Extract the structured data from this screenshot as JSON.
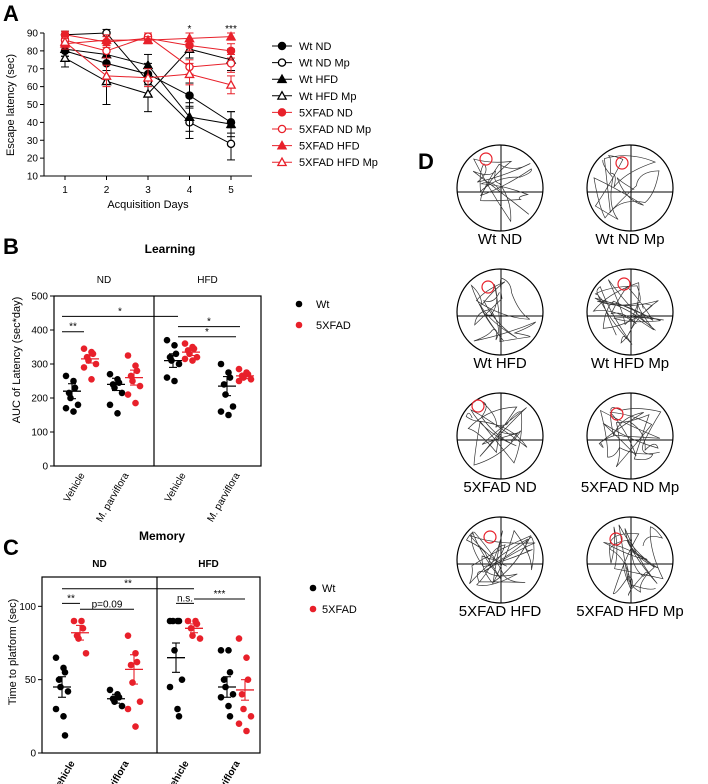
{
  "panel_letters": {
    "a": "A",
    "b": "B",
    "c": "C",
    "d": "D"
  },
  "colors": {
    "wt": "#000000",
    "fad": "#e8202a"
  },
  "chart_data": [
    {
      "id": "A",
      "type": "line",
      "xlabel": "Acquisition Days",
      "ylabel": "Escape latency (sec)",
      "x": [
        1,
        2,
        3,
        4,
        5
      ],
      "xticks": [
        "1",
        "2",
        "3",
        "4",
        "5"
      ],
      "ylim": [
        10,
        90
      ],
      "yticks": [
        10,
        20,
        30,
        40,
        50,
        60,
        70,
        80,
        90
      ],
      "significance": [
        {
          "day": 4,
          "label": "*"
        },
        {
          "day": 5,
          "label": "***"
        }
      ],
      "series": [
        {
          "name": "Wt ND",
          "color": "#000000",
          "marker": "circle",
          "filled": true,
          "values": [
            80,
            73,
            67,
            55,
            40
          ],
          "err": [
            3,
            4,
            6,
            7,
            6
          ]
        },
        {
          "name": "Wt ND Mp",
          "color": "#000000",
          "marker": "circle",
          "filled": false,
          "values": [
            89,
            90,
            63,
            40,
            28
          ],
          "err": [
            2,
            2,
            8,
            9,
            9
          ]
        },
        {
          "name": "Wt HFD",
          "color": "#000000",
          "marker": "triangle",
          "filled": true,
          "values": [
            81,
            78,
            72,
            43,
            39
          ],
          "err": [
            4,
            5,
            6,
            8,
            7
          ]
        },
        {
          "name": "Wt HFD Mp",
          "color": "#000000",
          "marker": "triangle",
          "filled": false,
          "values": [
            76,
            63,
            56,
            81,
            75
          ],
          "err": [
            5,
            13,
            10,
            5,
            6
          ]
        },
        {
          "name": "5XFAD ND",
          "color": "#e8202a",
          "marker": "circle",
          "filled": true,
          "values": [
            89,
            85,
            87,
            83,
            80
          ],
          "err": [
            2,
            3,
            2,
            3,
            4
          ]
        },
        {
          "name": "5XFAD ND Mp",
          "color": "#e8202a",
          "marker": "circle",
          "filled": false,
          "values": [
            86,
            80,
            88,
            71,
            73
          ],
          "err": [
            2,
            4,
            2,
            4,
            5
          ]
        },
        {
          "name": "5XFAD HFD",
          "color": "#e8202a",
          "marker": "triangle",
          "filled": true,
          "values": [
            84,
            86,
            86,
            87,
            88
          ],
          "err": [
            3,
            3,
            2,
            3,
            2
          ]
        },
        {
          "name": "5XFAD HFD Mp",
          "color": "#e8202a",
          "marker": "triangle",
          "filled": false,
          "values": [
            85,
            66,
            65,
            67,
            61
          ],
          "err": [
            3,
            6,
            5,
            6,
            5
          ]
        }
      ]
    },
    {
      "id": "B",
      "type": "scatter",
      "title": "Learning",
      "ylabel": "AUC of Latency (sec*day)",
      "ylim": [
        0,
        500
      ],
      "yticks": [
        0,
        100,
        200,
        300,
        400,
        500
      ],
      "groups": [
        "ND",
        "HFD"
      ],
      "categories": [
        "Vehicle",
        "M. parviflora",
        "Vehicle",
        "M. parviflora"
      ],
      "legend": [
        "Wt",
        "5XFAD"
      ],
      "series": [
        {
          "name": "Wt",
          "means": [
            220,
            240,
            310,
            235
          ],
          "sem": [
            22,
            18,
            20,
            28
          ],
          "points": [
            [
              265,
              250,
              230,
              215,
              200,
              180,
              170,
              160
            ],
            [
              270,
              255,
              245,
              240,
              230,
              215,
              180,
              155
            ],
            [
              370,
              355,
              330,
              320,
              310,
              300,
              260,
              250
            ],
            [
              300,
              275,
              260,
              240,
              210,
              175,
              160,
              150
            ]
          ]
        },
        {
          "name": "5XFAD",
          "means": [
            315,
            260,
            335,
            265
          ],
          "sem": [
            12,
            22,
            10,
            8
          ],
          "points": [
            [
              345,
              335,
              330,
              320,
              310,
              300,
              290,
              255
            ],
            [
              325,
              295,
              280,
              265,
              250,
              235,
              210,
              185
            ],
            [
              360,
              350,
              345,
              340,
              330,
              320,
              315,
              310
            ],
            [
              285,
              275,
              270,
              265,
              260,
              255,
              250
            ]
          ]
        }
      ],
      "brackets": [
        {
          "label": "**",
          "from": 0,
          "to": 1,
          "y": 395
        },
        {
          "label": "*",
          "from": 0,
          "to": 2,
          "y": 440
        },
        {
          "label": "*",
          "from": 2,
          "to": 3,
          "y": 410
        },
        {
          "label": "*",
          "from": 2,
          "to": 2,
          "y": 375
        }
      ]
    },
    {
      "id": "C",
      "type": "scatter",
      "title": "Memory",
      "ylabel": "Time to platform (sec)",
      "ylim": [
        0,
        120
      ],
      "yticks": [
        0,
        50,
        100
      ],
      "groups": [
        "ND",
        "HFD"
      ],
      "categories": [
        "Vehicle",
        "M. parviflora",
        "Vehicle",
        "M. parviflora"
      ],
      "legend": [
        "Wt",
        "5XFAD"
      ],
      "series": [
        {
          "name": "Wt",
          "means": [
            45,
            37,
            65,
            45
          ],
          "sem": [
            7,
            3,
            10,
            7
          ],
          "points": [
            [
              65,
              58,
              55,
              50,
              45,
              42,
              30,
              25,
              12
            ],
            [
              43,
              40,
              38,
              37,
              35,
              32
            ],
            [
              90,
              90,
              90,
              90,
              70,
              50,
              45,
              30,
              25
            ],
            [
              70,
              70,
              55,
              50,
              45,
              40,
              38,
              32,
              25
            ]
          ]
        },
        {
          "name": "5XFAD",
          "means": [
            82,
            57,
            85,
            43
          ],
          "sem": [
            5,
            10,
            3,
            7
          ],
          "points": [
            [
              90,
              90,
              85,
              80,
              78,
              68
            ],
            [
              80,
              68,
              62,
              60,
              48,
              35,
              30,
              18
            ],
            [
              90,
              90,
              88,
              85,
              80,
              78
            ],
            [
              78,
              65,
              50,
              40,
              30,
              25,
              20,
              15
            ]
          ]
        }
      ],
      "brackets": [
        {
          "label": "**",
          "from": 0,
          "to": 1,
          "y": 103
        },
        {
          "label": "p=0.09",
          "from": 0,
          "to": 3,
          "y": 98
        },
        {
          "label": "**",
          "from": 0,
          "to": 5,
          "y": 112
        },
        {
          "label": "n.s.",
          "from": 4,
          "to": 5,
          "y": 103
        },
        {
          "label": "***",
          "from": 4,
          "to": 7,
          "y": 108
        }
      ]
    }
  ],
  "panel_d": {
    "labels": [
      "Wt ND",
      "Wt ND Mp",
      "Wt HFD",
      "Wt HFD Mp",
      "5XFAD ND",
      "5XFAD ND Mp",
      "5XFAD HFD",
      "5XFAD HFD Mp"
    ]
  }
}
